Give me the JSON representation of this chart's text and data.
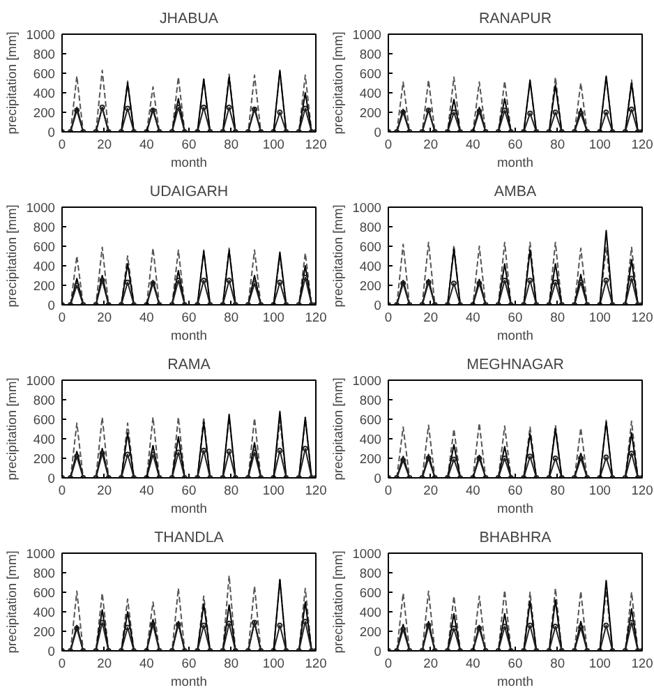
{
  "chart_data": [
    {
      "type": "line",
      "title": "JHABUA",
      "xlabel": "month",
      "ylabel": "precipitation [mm]",
      "xlim": [
        0,
        120
      ],
      "ylim": [
        0,
        1000
      ],
      "xticks": [
        0,
        20,
        40,
        60,
        80,
        100,
        120
      ],
      "yticks": [
        0,
        200,
        400,
        600,
        800,
        1000
      ],
      "grid": false,
      "x": [
        0,
        4,
        7,
        10,
        16,
        19,
        22,
        28,
        31,
        34,
        40,
        43,
        46,
        52,
        55,
        58,
        64,
        67,
        70,
        76,
        79,
        82,
        88,
        91,
        94,
        100,
        103,
        106,
        112,
        115,
        118,
        120
      ],
      "series": [
        {
          "color": "#555555",
          "line_style": "dashed",
          "values": [
            0,
            0,
            570,
            0,
            0,
            630,
            0,
            0,
            520,
            0,
            0,
            460,
            0,
            0,
            560,
            0,
            0,
            540,
            0,
            0,
            590,
            0,
            0,
            580,
            0,
            0,
            620,
            0,
            0,
            580,
            0,
            0
          ]
        },
        {
          "color": "#000000",
          "line_style": "solid",
          "values": [
            0,
            0,
            250,
            0,
            0,
            250,
            0,
            0,
            500,
            0,
            0,
            240,
            0,
            0,
            340,
            0,
            0,
            540,
            0,
            0,
            560,
            0,
            0,
            250,
            0,
            0,
            630,
            0,
            0,
            400,
            0,
            0
          ]
        },
        {
          "color": "#222222",
          "line_style": "solid",
          "marker": "circle",
          "values": [
            0,
            0,
            220,
            0,
            0,
            250,
            0,
            0,
            240,
            0,
            0,
            220,
            0,
            0,
            250,
            0,
            0,
            250,
            0,
            0,
            250,
            0,
            0,
            230,
            0,
            0,
            200,
            0,
            0,
            240,
            0,
            0
          ]
        }
      ]
    },
    {
      "type": "line",
      "title": "RANAPUR",
      "xlabel": "month",
      "ylabel": "precipitation [mm]",
      "xlim": [
        0,
        120
      ],
      "ylim": [
        0,
        1000
      ],
      "xticks": [
        0,
        20,
        40,
        60,
        80,
        100,
        120
      ],
      "yticks": [
        0,
        200,
        400,
        600,
        800,
        1000
      ],
      "grid": false,
      "x": [
        0,
        4,
        7,
        10,
        16,
        19,
        22,
        28,
        31,
        34,
        40,
        43,
        46,
        52,
        55,
        58,
        64,
        67,
        70,
        76,
        79,
        82,
        88,
        91,
        94,
        100,
        103,
        106,
        112,
        115,
        118,
        120
      ],
      "series": [
        {
          "color": "#555555",
          "line_style": "dashed",
          "values": [
            0,
            0,
            510,
            0,
            0,
            530,
            0,
            0,
            560,
            0,
            0,
            510,
            0,
            0,
            520,
            0,
            0,
            520,
            0,
            0,
            560,
            0,
            0,
            500,
            0,
            0,
            560,
            0,
            0,
            530,
            0,
            0
          ]
        },
        {
          "color": "#000000",
          "line_style": "solid",
          "values": [
            0,
            0,
            230,
            0,
            0,
            230,
            0,
            0,
            330,
            0,
            0,
            250,
            0,
            0,
            340,
            0,
            0,
            530,
            0,
            0,
            480,
            0,
            0,
            240,
            0,
            0,
            570,
            0,
            0,
            500,
            0,
            0
          ]
        },
        {
          "color": "#222222",
          "line_style": "solid",
          "marker": "circle",
          "values": [
            0,
            0,
            200,
            0,
            0,
            220,
            0,
            0,
            200,
            0,
            0,
            210,
            0,
            0,
            220,
            0,
            0,
            190,
            0,
            0,
            200,
            0,
            0,
            190,
            0,
            0,
            200,
            0,
            0,
            230,
            0,
            0
          ]
        }
      ]
    },
    {
      "type": "line",
      "title": "UDAIGARH",
      "xlabel": "month",
      "ylabel": "precipitation [mm]",
      "xlim": [
        0,
        120
      ],
      "ylim": [
        0,
        1000
      ],
      "xticks": [
        0,
        20,
        40,
        60,
        80,
        100,
        120
      ],
      "yticks": [
        0,
        200,
        400,
        600,
        800,
        1000
      ],
      "grid": false,
      "x": [
        0,
        4,
        7,
        10,
        16,
        19,
        22,
        28,
        31,
        34,
        40,
        43,
        46,
        52,
        55,
        58,
        64,
        67,
        70,
        76,
        79,
        82,
        88,
        91,
        94,
        100,
        103,
        106,
        112,
        115,
        118,
        120
      ],
      "series": [
        {
          "color": "#555555",
          "line_style": "dashed",
          "values": [
            0,
            0,
            500,
            0,
            0,
            590,
            0,
            0,
            500,
            0,
            0,
            580,
            0,
            0,
            560,
            0,
            0,
            560,
            0,
            0,
            580,
            0,
            0,
            560,
            0,
            0,
            500,
            0,
            0,
            530,
            0,
            0
          ]
        },
        {
          "color": "#000000",
          "line_style": "solid",
          "values": [
            0,
            0,
            270,
            0,
            0,
            300,
            0,
            0,
            420,
            0,
            0,
            250,
            0,
            0,
            350,
            0,
            0,
            550,
            0,
            0,
            560,
            0,
            0,
            300,
            0,
            0,
            540,
            0,
            0,
            400,
            0,
            0
          ]
        },
        {
          "color": "#222222",
          "line_style": "solid",
          "marker": "circle",
          "values": [
            0,
            0,
            200,
            0,
            0,
            250,
            0,
            0,
            230,
            0,
            0,
            220,
            0,
            0,
            250,
            0,
            0,
            250,
            0,
            0,
            250,
            0,
            0,
            220,
            0,
            0,
            230,
            0,
            0,
            280,
            0,
            0
          ]
        }
      ]
    },
    {
      "type": "line",
      "title": "AMBA",
      "xlabel": "month",
      "ylabel": "precipitation [mm]",
      "xlim": [
        0,
        120
      ],
      "ylim": [
        0,
        1000
      ],
      "xticks": [
        0,
        20,
        40,
        60,
        80,
        100,
        120
      ],
      "yticks": [
        0,
        200,
        400,
        600,
        800,
        1000
      ],
      "grid": false,
      "x": [
        0,
        4,
        7,
        10,
        16,
        19,
        22,
        28,
        31,
        34,
        40,
        43,
        46,
        52,
        55,
        58,
        64,
        67,
        70,
        76,
        79,
        82,
        88,
        91,
        94,
        100,
        103,
        106,
        112,
        115,
        118,
        120
      ],
      "series": [
        {
          "color": "#555555",
          "line_style": "dashed",
          "values": [
            0,
            0,
            620,
            0,
            0,
            640,
            0,
            0,
            610,
            0,
            0,
            600,
            0,
            0,
            640,
            0,
            0,
            640,
            0,
            0,
            640,
            0,
            0,
            580,
            0,
            0,
            590,
            0,
            0,
            590,
            0,
            0
          ]
        },
        {
          "color": "#000000",
          "line_style": "solid",
          "values": [
            0,
            0,
            250,
            0,
            0,
            260,
            0,
            0,
            570,
            0,
            0,
            260,
            0,
            0,
            420,
            0,
            0,
            560,
            0,
            0,
            420,
            0,
            0,
            310,
            0,
            0,
            760,
            0,
            0,
            460,
            0,
            0
          ]
        },
        {
          "color": "#222222",
          "line_style": "solid",
          "marker": "circle",
          "values": [
            0,
            0,
            220,
            0,
            0,
            230,
            0,
            0,
            220,
            0,
            0,
            220,
            0,
            0,
            250,
            0,
            0,
            250,
            0,
            0,
            230,
            0,
            0,
            230,
            0,
            0,
            250,
            0,
            0,
            270,
            0,
            0
          ]
        }
      ]
    },
    {
      "type": "line",
      "title": "RAMA",
      "xlabel": "month",
      "ylabel": "precipitation [mm]",
      "xlim": [
        0,
        120
      ],
      "ylim": [
        0,
        1000
      ],
      "xticks": [
        0,
        20,
        40,
        60,
        80,
        100,
        120
      ],
      "yticks": [
        0,
        200,
        400,
        600,
        800,
        1000
      ],
      "grid": false,
      "x": [
        0,
        4,
        7,
        10,
        16,
        19,
        22,
        28,
        31,
        34,
        40,
        43,
        46,
        52,
        55,
        58,
        64,
        67,
        70,
        76,
        79,
        82,
        88,
        91,
        94,
        100,
        103,
        106,
        112,
        115,
        118,
        120
      ],
      "series": [
        {
          "color": "#555555",
          "line_style": "dashed",
          "values": [
            0,
            0,
            560,
            0,
            0,
            620,
            0,
            0,
            560,
            0,
            0,
            620,
            0,
            0,
            620,
            0,
            0,
            620,
            0,
            0,
            620,
            0,
            0,
            610,
            0,
            0,
            590,
            0,
            0,
            600,
            0,
            0
          ]
        },
        {
          "color": "#000000",
          "line_style": "solid",
          "values": [
            0,
            0,
            270,
            0,
            0,
            300,
            0,
            0,
            460,
            0,
            0,
            330,
            0,
            0,
            420,
            0,
            0,
            570,
            0,
            0,
            650,
            0,
            0,
            360,
            0,
            0,
            680,
            0,
            0,
            620,
            0,
            0
          ]
        },
        {
          "color": "#222222",
          "line_style": "solid",
          "marker": "circle",
          "values": [
            0,
            0,
            220,
            0,
            0,
            250,
            0,
            0,
            240,
            0,
            0,
            240,
            0,
            0,
            260,
            0,
            0,
            280,
            0,
            0,
            270,
            0,
            0,
            260,
            0,
            0,
            280,
            0,
            0,
            300,
            0,
            0
          ]
        }
      ]
    },
    {
      "type": "line",
      "title": "MEGHNAGAR",
      "xlabel": "month",
      "ylabel": "precipitation [mm]",
      "xlim": [
        0,
        120
      ],
      "ylim": [
        0,
        1000
      ],
      "xticks": [
        0,
        20,
        40,
        60,
        80,
        100,
        120
      ],
      "yticks": [
        0,
        200,
        400,
        600,
        800,
        1000
      ],
      "grid": false,
      "x": [
        0,
        4,
        7,
        10,
        16,
        19,
        22,
        28,
        31,
        34,
        40,
        43,
        46,
        52,
        55,
        58,
        64,
        67,
        70,
        76,
        79,
        82,
        88,
        91,
        94,
        100,
        103,
        106,
        112,
        115,
        118,
        120
      ],
      "series": [
        {
          "color": "#555555",
          "line_style": "dashed",
          "values": [
            0,
            0,
            520,
            0,
            0,
            540,
            0,
            0,
            500,
            0,
            0,
            560,
            0,
            0,
            530,
            0,
            0,
            520,
            0,
            0,
            540,
            0,
            0,
            510,
            0,
            0,
            590,
            0,
            0,
            580,
            0,
            0
          ]
        },
        {
          "color": "#000000",
          "line_style": "solid",
          "values": [
            0,
            0,
            220,
            0,
            0,
            240,
            0,
            0,
            340,
            0,
            0,
            230,
            0,
            0,
            320,
            0,
            0,
            450,
            0,
            0,
            500,
            0,
            0,
            250,
            0,
            0,
            570,
            0,
            0,
            460,
            0,
            0
          ]
        },
        {
          "color": "#222222",
          "line_style": "solid",
          "marker": "circle",
          "values": [
            0,
            0,
            180,
            0,
            0,
            200,
            0,
            0,
            190,
            0,
            0,
            200,
            0,
            0,
            200,
            0,
            0,
            220,
            0,
            0,
            200,
            0,
            0,
            200,
            0,
            0,
            210,
            0,
            0,
            250,
            0,
            0
          ]
        }
      ]
    },
    {
      "type": "line",
      "title": "THANDLA",
      "xlabel": "month",
      "ylabel": "precipitation [mm]",
      "xlim": [
        0,
        120
      ],
      "ylim": [
        0,
        1000
      ],
      "xticks": [
        0,
        20,
        40,
        60,
        80,
        100,
        120
      ],
      "yticks": [
        0,
        200,
        400,
        600,
        800,
        1000
      ],
      "grid": false,
      "x": [
        0,
        4,
        7,
        10,
        16,
        19,
        22,
        28,
        31,
        34,
        40,
        43,
        46,
        52,
        55,
        58,
        64,
        67,
        70,
        76,
        79,
        82,
        88,
        91,
        94,
        100,
        103,
        106,
        112,
        115,
        118,
        120
      ],
      "series": [
        {
          "color": "#555555",
          "line_style": "dashed",
          "values": [
            0,
            0,
            610,
            0,
            0,
            590,
            0,
            0,
            530,
            0,
            0,
            500,
            0,
            0,
            640,
            0,
            0,
            560,
            0,
            0,
            770,
            0,
            0,
            660,
            0,
            0,
            740,
            0,
            0,
            640,
            0,
            0
          ]
        },
        {
          "color": "#000000",
          "line_style": "solid",
          "values": [
            0,
            0,
            260,
            0,
            0,
            420,
            0,
            0,
            400,
            0,
            0,
            320,
            0,
            0,
            300,
            0,
            0,
            480,
            0,
            0,
            470,
            0,
            0,
            300,
            0,
            0,
            730,
            0,
            0,
            500,
            0,
            0
          ]
        },
        {
          "color": "#222222",
          "line_style": "solid",
          "marker": "circle",
          "values": [
            0,
            0,
            230,
            0,
            0,
            290,
            0,
            0,
            240,
            0,
            0,
            270,
            0,
            0,
            270,
            0,
            0,
            260,
            0,
            0,
            280,
            0,
            0,
            290,
            0,
            0,
            260,
            0,
            0,
            300,
            0,
            0
          ]
        }
      ]
    },
    {
      "type": "line",
      "title": "BHABHRA",
      "xlabel": "month",
      "ylabel": "precipitation [mm]",
      "xlim": [
        0,
        120
      ],
      "ylim": [
        0,
        1000
      ],
      "xticks": [
        0,
        20,
        40,
        60,
        80,
        100,
        120
      ],
      "yticks": [
        0,
        200,
        400,
        600,
        800,
        1000
      ],
      "grid": false,
      "x": [
        0,
        4,
        7,
        10,
        16,
        19,
        22,
        28,
        31,
        34,
        40,
        43,
        46,
        52,
        55,
        58,
        64,
        67,
        70,
        76,
        79,
        82,
        88,
        91,
        94,
        100,
        103,
        106,
        112,
        115,
        118,
        120
      ],
      "series": [
        {
          "color": "#555555",
          "line_style": "dashed",
          "values": [
            0,
            0,
            590,
            0,
            0,
            610,
            0,
            0,
            560,
            0,
            0,
            560,
            0,
            0,
            620,
            0,
            0,
            600,
            0,
            0,
            640,
            0,
            0,
            610,
            0,
            0,
            620,
            0,
            0,
            600,
            0,
            0
          ]
        },
        {
          "color": "#000000",
          "line_style": "solid",
          "values": [
            0,
            0,
            270,
            0,
            0,
            300,
            0,
            0,
            380,
            0,
            0,
            260,
            0,
            0,
            380,
            0,
            0,
            510,
            0,
            0,
            520,
            0,
            0,
            300,
            0,
            0,
            720,
            0,
            0,
            430,
            0,
            0
          ]
        },
        {
          "color": "#222222",
          "line_style": "solid",
          "marker": "circle",
          "values": [
            0,
            0,
            220,
            0,
            0,
            260,
            0,
            0,
            230,
            0,
            0,
            230,
            0,
            0,
            250,
            0,
            0,
            260,
            0,
            0,
            250,
            0,
            0,
            240,
            0,
            0,
            260,
            0,
            0,
            290,
            0,
            0
          ]
        }
      ]
    }
  ]
}
